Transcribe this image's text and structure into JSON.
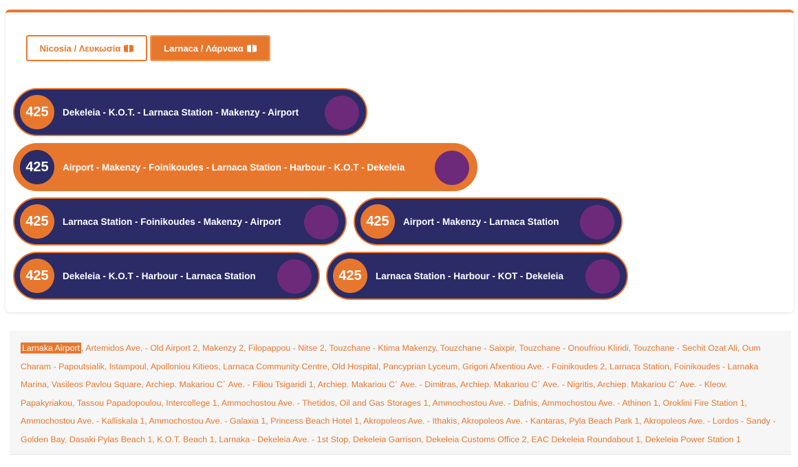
{
  "tabs": [
    {
      "label": "Nicosia / Λευκωσία",
      "active": false
    },
    {
      "label": "Larnaca / Λάρνακα",
      "active": true
    }
  ],
  "routes": [
    {
      "number": "425",
      "label": "Dekeleia - K.O.T. - Larnaca Station - Makenzy - Airport",
      "selected": false
    },
    {
      "number": "425",
      "label": "Airport - Makenzy - Foinikoudes - Larnaca Station - Harbour - K.O.T - Dekeleia",
      "selected": true
    },
    {
      "number": "425",
      "label": "Larnaca Station - Foinikoudes - Makenzy - Airport",
      "selected": false
    },
    {
      "number": "425",
      "label": "Airport - Makenzy - Larnaca Station",
      "selected": false
    },
    {
      "number": "425",
      "label": "Dekeleia - K.O.T - Harbour - Larnaca Station",
      "selected": false
    },
    {
      "number": "425",
      "label": "Larnaca Station - Harbour - KOT - Dekeleia",
      "selected": false
    }
  ],
  "stops": {
    "current": "Larnaka Airport",
    "rest": ", Artemidos Ave. - Old Airport 2, Makenzy 2, Filopappou - Nitse 2, Touzchane - Ktima Makenzy, Touzchane - Saixpir, Touzchane - Onoufriou Kliridi, Touzchane - Sechit Ozat Ali, Oum Charam - Papoutsialik, Istampoul, Apolloniou Kitieos, Larnaca Community Centre, Old Hospital, Pancyprian Lyceum, Grigori Afxentiou Ave. - Foinikoudes 2, Larnaca Station, Foinikoudes - Larnaka Marina, Vasileos Pavlou Square, Archiep. Makariou C΄ Ave. - Filiou Tsigaridi 1, Archiep. Makariou C΄ Ave. - Dimitras, Archiep. Makariou C΄ Ave. - Nigritis, Archiep. Makariou C΄ Ave. - Kleov. Papakyriakou, Tassou Papadopoulou, Intercollege 1, Ammochostou Ave. - Thetidos, Oil and Gas Storages 1, Ammochostou Ave. - Dafnis, Ammochostou Ave. - Athinon 1, Oroklini Fire Station 1, Ammochostou Ave. - Kalliskala 1, Ammochostou Ave. - Galaxia 1, Princess Beach Hotel 1, Akropoleos Ave. - Ithakis, Akropoleos Ave. - Kantaras, Pyla Beach Park 1, Akropoleos Ave. - Lordos - Sandy - Golden Bay, Dasaki Pylas Beach 1, K.O.T. Beach 1, Larnaka - Dekeleia Ave. - 1st Stop, Dekeleia Garrison, Dekeleia Customs Office 2, EAC Dekeleia Roundabout 1, Dekeleia Power Station 1"
  },
  "colors": {
    "accent": "#e8772e",
    "navy": "#2a2b67",
    "purple": "#6d2a7a"
  },
  "icons": {
    "tab_icon": "book-open-icon",
    "route_end": "purple-circle"
  }
}
